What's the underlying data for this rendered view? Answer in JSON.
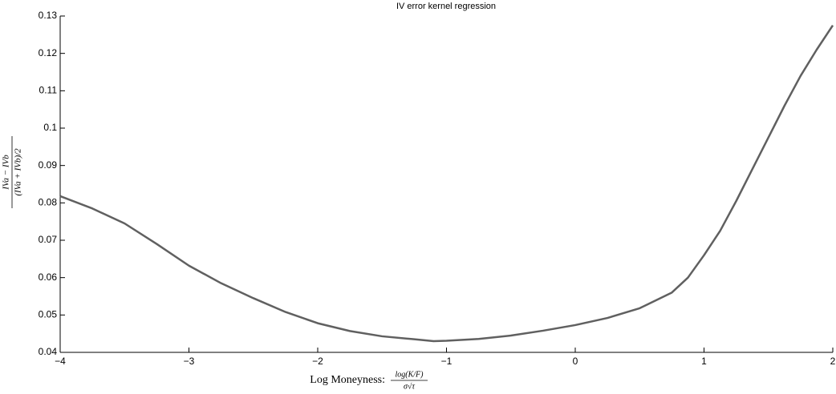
{
  "chart_data": {
    "type": "line",
    "title": "IV error kernel regression",
    "xlabel": "Log Moneyness:",
    "xlabel_fraction": {
      "numerator": "log(K/F)",
      "denominator": "σ√τ"
    },
    "ylabel_fraction": {
      "numerator": "IVa − IVb",
      "denominator": "(IVa + IVb)/2"
    },
    "x": [
      -4,
      -3.75,
      -3.5,
      -3.25,
      -3,
      -2.75,
      -2.5,
      -2.25,
      -2,
      -1.75,
      -1.5,
      -1.25,
      -1.1,
      -1,
      -0.75,
      -0.5,
      -0.25,
      0,
      0.25,
      0.5,
      0.75,
      0.875,
      1,
      1.125,
      1.25,
      1.375,
      1.5,
      1.625,
      1.75,
      1.875,
      2
    ],
    "series": [
      {
        "name": "IV error",
        "color": "#606060",
        "values": [
          0.0818,
          0.0785,
          0.0745,
          0.069,
          0.0632,
          0.0585,
          0.0545,
          0.0508,
          0.0478,
          0.0457,
          0.0443,
          0.0435,
          0.043,
          0.0431,
          0.0436,
          0.0445,
          0.0458,
          0.0473,
          0.0492,
          0.0518,
          0.056,
          0.06,
          0.066,
          0.0725,
          0.0805,
          0.089,
          0.0975,
          0.106,
          0.114,
          0.121,
          0.1275
        ]
      }
    ],
    "xlim": [
      -4,
      2
    ],
    "xticks": [
      {
        "value": -4,
        "label": "−4"
      },
      {
        "value": -3,
        "label": "−3"
      },
      {
        "value": -2,
        "label": "−2"
      },
      {
        "value": -1,
        "label": "−1"
      },
      0,
      1,
      2
    ],
    "ylim": [
      0.04,
      0.13
    ],
    "yticks": [
      0.04,
      0.05,
      0.06,
      0.07,
      0.08,
      0.09,
      0.1,
      0.11,
      0.12,
      0.13
    ]
  }
}
